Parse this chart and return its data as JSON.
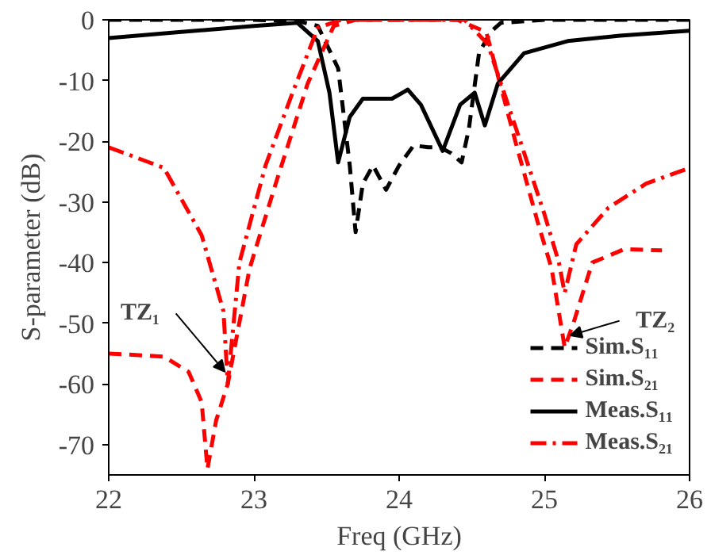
{
  "chart_data": {
    "type": "line",
    "xlabel": "Freq (GHz)",
    "ylabel": "S-parameter (dB)",
    "xlim": [
      22,
      26
    ],
    "ylim": [
      -75,
      0
    ],
    "xticks": [
      22,
      23,
      24,
      25,
      26
    ],
    "yticks": [
      0,
      -10,
      -20,
      -30,
      -40,
      -50,
      -60,
      -70
    ],
    "grid": false,
    "legend": "bottom right",
    "marker": "none",
    "series": [
      {
        "name": "Sim.S₁₁",
        "color": "#000000",
        "line_style": "dashed",
        "x": [
          22,
          22.5,
          23,
          23.3,
          23.44,
          23.58,
          23.66,
          23.7,
          23.75,
          23.82,
          23.91,
          24.0,
          24.1,
          24.2,
          24.28,
          24.36,
          24.43,
          24.48,
          24.55,
          24.63,
          24.7,
          25,
          25.5,
          26
        ],
        "values": [
          0,
          0,
          0,
          -0.2,
          -1,
          -8,
          -24,
          -35,
          -27,
          -24,
          -28,
          -24,
          -20.7,
          -21,
          -21,
          -22,
          -23.5,
          -18,
          -5.5,
          -2,
          -0.5,
          0,
          0,
          0
        ]
      },
      {
        "name": "Sim.S₂₁",
        "color": "#ff0000",
        "line_style": "dashed",
        "x": [
          22,
          22.38,
          22.55,
          22.64,
          22.68,
          22.74,
          22.82,
          22.97,
          23.15,
          23.37,
          23.55,
          23.7,
          24,
          24.4,
          24.6,
          24.8,
          24.95,
          25.05,
          25.14,
          25.2,
          25.33,
          25.55,
          25.81
        ],
        "values": [
          -55,
          -55.5,
          -58,
          -63,
          -74,
          -66,
          -60,
          -41,
          -27,
          -10.5,
          -1,
          0,
          0,
          0,
          -2,
          -20,
          -33,
          -41,
          -54,
          -50,
          -40,
          -37.8,
          -38
        ]
      },
      {
        "name": "Meas.S₁₁",
        "color": "#000000",
        "line_style": "solid",
        "x": [
          22,
          22.5,
          23,
          23.3,
          23.44,
          23.52,
          23.58,
          23.66,
          23.75,
          23.95,
          24.06,
          24.15,
          24.3,
          24.42,
          24.52,
          24.59,
          24.68,
          24.86,
          25.16,
          25.52,
          26
        ],
        "values": [
          -3,
          -2,
          -1,
          -0.5,
          -3.5,
          -12,
          -23.5,
          -16,
          -13,
          -13,
          -11.5,
          -14,
          -21.6,
          -14,
          -12,
          -17.4,
          -10.5,
          -5.5,
          -3.5,
          -2.6,
          -1.8
        ]
      },
      {
        "name": "Meas.S₂₁",
        "color": "#ff0000",
        "line_style": "dashdot",
        "x": [
          22,
          22.38,
          22.64,
          22.79,
          22.82,
          22.9,
          23.08,
          23.26,
          23.44,
          23.6,
          24,
          24.45,
          24.61,
          24.83,
          25.0,
          25.1,
          25.14,
          25.22,
          25.44,
          25.7,
          26
        ],
        "values": [
          -21,
          -24.4,
          -35.5,
          -48,
          -60,
          -40,
          -24,
          -12.4,
          -1.3,
          0,
          0,
          0,
          -4,
          -19.7,
          -32,
          -40,
          -45,
          -37,
          -31,
          -27,
          -24.4
        ]
      }
    ],
    "annotations": [
      {
        "text": "TZ₁",
        "x": 22.8,
        "y": -58
      },
      {
        "text": "TZ₂",
        "x": 25.18,
        "y": -52
      }
    ]
  }
}
